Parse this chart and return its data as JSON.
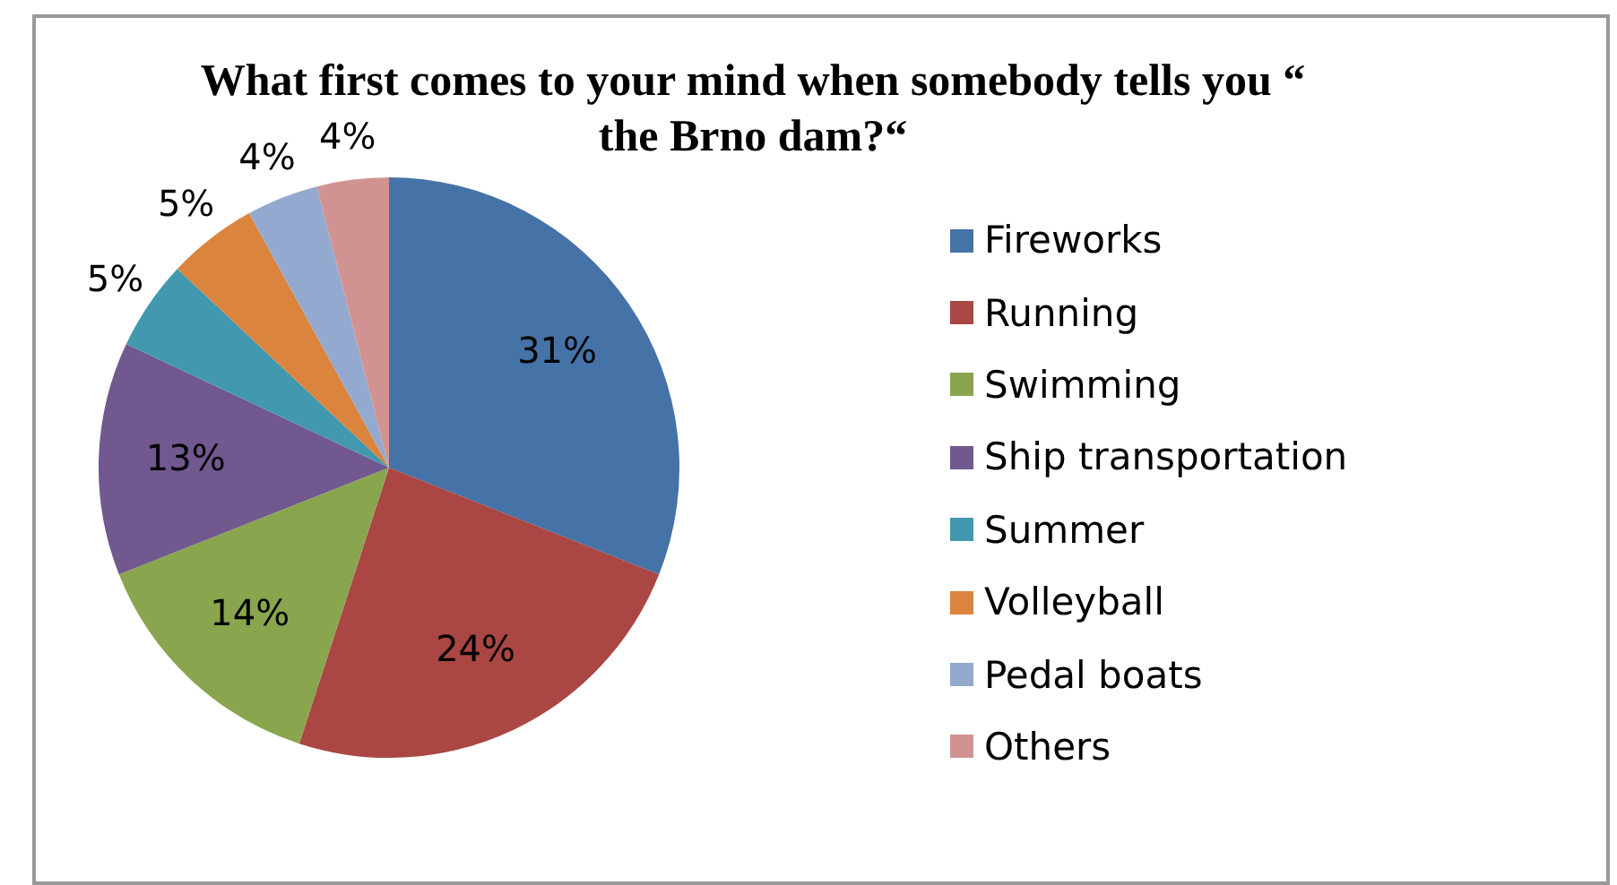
{
  "chart_data": {
    "type": "pie",
    "title": "What first comes to your mind when somebody tells you “ the Brno dam?“",
    "categories": [
      "Fireworks",
      "Running",
      "Swimming",
      "Ship transportation",
      "Summer",
      "Volleyball",
      "Pedal boats",
      "Others"
    ],
    "values": [
      31,
      24,
      14,
      13,
      5,
      5,
      4,
      4
    ],
    "colors": [
      "#4572a7",
      "#aa4643",
      "#89a54e",
      "#71588f",
      "#4198af",
      "#db843d",
      "#93a9cf",
      "#d19392"
    ],
    "value_labels": [
      "31%",
      "24%",
      "14%",
      "13%",
      "5%",
      "5%",
      "4%",
      "4%"
    ],
    "legend": "right"
  }
}
